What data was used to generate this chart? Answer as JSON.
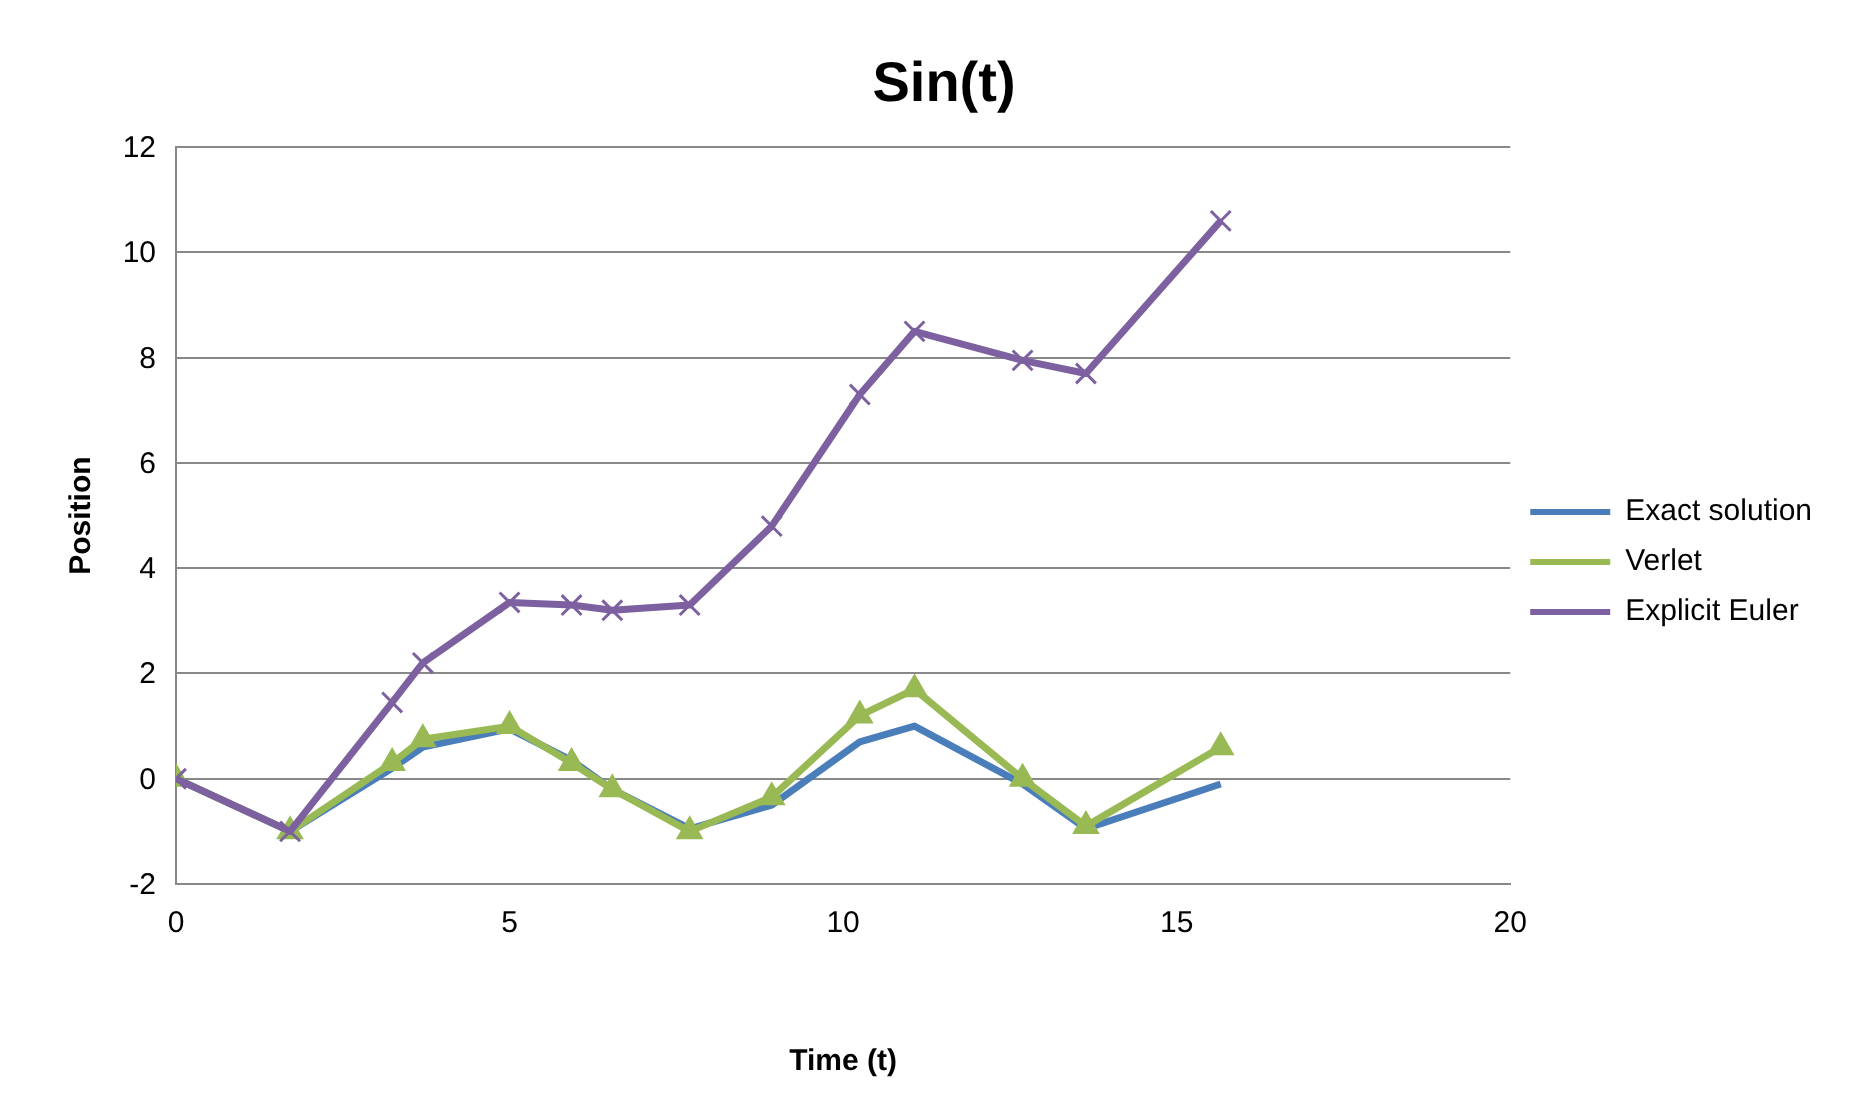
{
  "chart_data": {
    "type": "line",
    "title": "Sin(t)",
    "xlabel": "Time (t)",
    "ylabel": "Position",
    "x": [
      0,
      1.71,
      3.24,
      3.7,
      5.0,
      5.93,
      6.54,
      7.7,
      8.93,
      10.25,
      11.07,
      12.69,
      13.64,
      15.66
    ],
    "series": [
      {
        "name": "Exact solution",
        "color": "#4a7ebb",
        "marker": "none",
        "values": [
          0,
          -1,
          0.2,
          0.6,
          0.95,
          0.35,
          -0.2,
          -0.95,
          -0.5,
          0.7,
          1.0,
          -0.1,
          -0.95,
          -0.1
        ]
      },
      {
        "name": "Verlet",
        "color": "#98b954",
        "marker": "triangle",
        "values": [
          0,
          -1,
          0.3,
          0.75,
          1.0,
          0.3,
          -0.2,
          -1,
          -0.35,
          1.2,
          1.7,
          0.0,
          -0.9,
          0.6
        ]
      },
      {
        "name": "Explicit Euler",
        "color": "#7d60a0",
        "marker": "cross",
        "values": [
          0,
          -1,
          1.45,
          2.2,
          3.35,
          3.3,
          3.2,
          3.3,
          4.8,
          7.3,
          8.5,
          7.95,
          7.7,
          10.6
        ]
      }
    ],
    "xlim": [
      0,
      20
    ],
    "xticks": [
      0,
      5,
      10,
      15,
      20
    ],
    "ylim": [
      -2,
      12
    ],
    "yticks": [
      -2,
      0,
      2,
      4,
      6,
      8,
      10,
      12
    ],
    "grid": "y",
    "legend": "right"
  }
}
